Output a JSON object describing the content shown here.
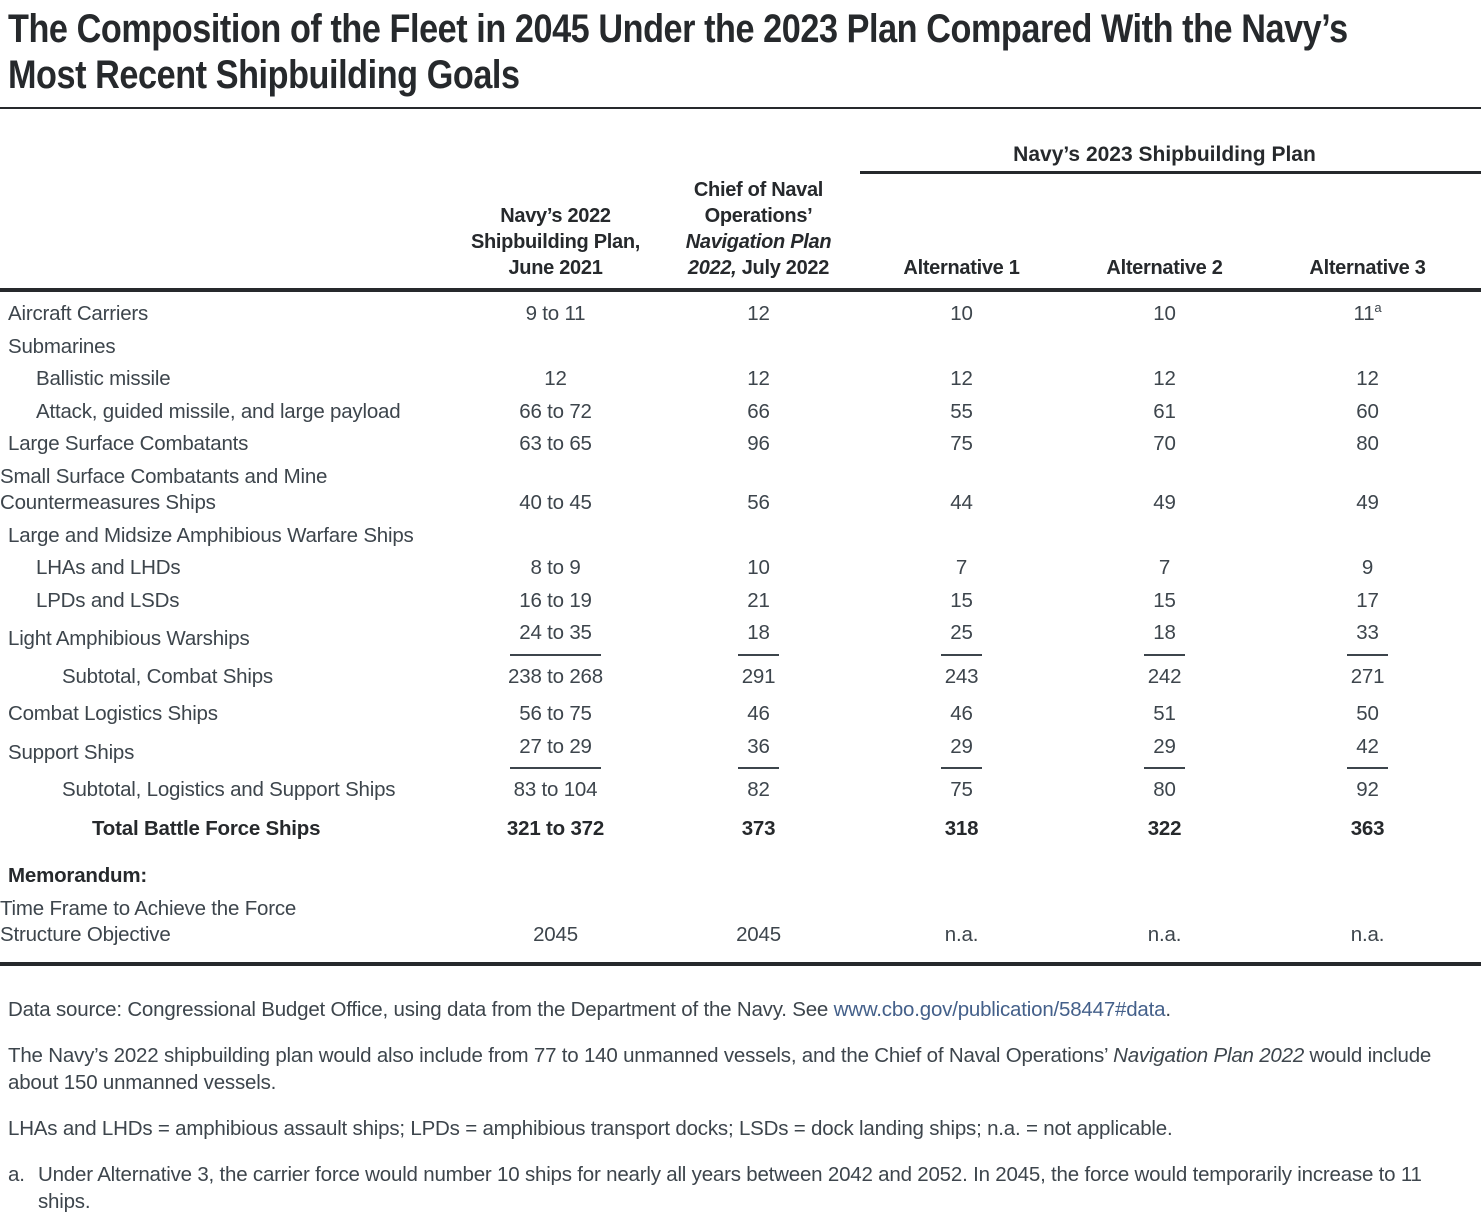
{
  "title": {
    "line1": "The Composition of the Fleet in 2045 Under the 2023 Plan Compared With the Navy’s",
    "line2": "Most Recent Shipbuilding Goals"
  },
  "colors": {
    "heading": "#26292c",
    "text": "#3d454c",
    "rule": "#26292c",
    "rule_thin": "#3d454c",
    "link": "#44608a"
  },
  "table": {
    "span_header": "Navy’s 2023 Shipbuilding Plan",
    "columns": [
      {
        "name": "navy-2022-plan",
        "lines": [
          [
            {
              "t": "Navy’s 2022"
            }
          ],
          [
            {
              "t": "Shipbuilding Plan,"
            }
          ],
          [
            {
              "t": "June 2021"
            }
          ]
        ]
      },
      {
        "name": "cno-navigation-plan",
        "lines": [
          [
            {
              "t": "Chief of Naval"
            }
          ],
          [
            {
              "t": "Operations’"
            }
          ],
          [
            {
              "t": "Navigation Plan",
              "i": true
            }
          ],
          [
            {
              "t": "2022,",
              "i": true
            },
            {
              "t": " July 2022"
            }
          ]
        ]
      },
      {
        "name": "alternative-1",
        "lines": [
          [
            {
              "t": "Alternative 1"
            }
          ]
        ]
      },
      {
        "name": "alternative-2",
        "lines": [
          [
            {
              "t": "Alternative 2"
            }
          ]
        ]
      },
      {
        "name": "alternative-3",
        "lines": [
          [
            {
              "t": "Alternative 3"
            }
          ]
        ]
      }
    ],
    "rows": [
      {
        "label": "Aircraft Carriers",
        "indent": 0,
        "values": [
          "9 to 11",
          "12",
          "10",
          "10",
          "11"
        ],
        "sup_last": "a"
      },
      {
        "label": "Submarines",
        "indent": 0,
        "values": [
          "",
          "",
          "",
          "",
          ""
        ]
      },
      {
        "label": "Ballistic missile",
        "indent": 1,
        "values": [
          "12",
          "12",
          "12",
          "12",
          "12"
        ]
      },
      {
        "label": "Attack, guided missile, and large payload",
        "indent": 1,
        "values": [
          "66 to 72",
          "66",
          "55",
          "61",
          "60"
        ]
      },
      {
        "label": "Large Surface Combatants",
        "indent": 0,
        "values": [
          "63 to 65",
          "96",
          "75",
          "70",
          "80"
        ]
      },
      {
        "label": "Small Surface Combatants and Mine\nCountermeasures Ships",
        "indent": 0,
        "twoline": true,
        "values": [
          "40 to 45",
          "56",
          "44",
          "49",
          "49"
        ]
      },
      {
        "label": "Large and Midsize Amphibious Warfare Ships",
        "indent": 0,
        "values": [
          "",
          "",
          "",
          "",
          ""
        ]
      },
      {
        "label": "LHAs and LHDs",
        "indent": 1,
        "values": [
          "8 to 9",
          "10",
          "7",
          "7",
          "9"
        ]
      },
      {
        "label": "LPDs and LSDs",
        "indent": 1,
        "values": [
          "16 to 19",
          "21",
          "15",
          "15",
          "17"
        ]
      },
      {
        "label": "Light Amphibious Warships",
        "indent": 0,
        "rule_below": true,
        "values": [
          "24 to 35",
          "18",
          "25",
          "18",
          "33"
        ]
      },
      {
        "label": "Subtotal, Combat Ships",
        "indent": 2,
        "gap": 5,
        "values": [
          "238 to 268",
          "291",
          "243",
          "242",
          "271"
        ]
      },
      {
        "label": "Combat Logistics Ships",
        "indent": 0,
        "gap": 5,
        "values": [
          "56 to 75",
          "46",
          "46",
          "51",
          "50"
        ]
      },
      {
        "label": "Support Ships",
        "indent": 0,
        "rule_below": true,
        "values": [
          "27 to 29",
          "36",
          "29",
          "29",
          "42"
        ]
      },
      {
        "label": "Subtotal, Logistics and Support Ships",
        "indent": 2,
        "gap": 5,
        "values": [
          "83 to 104",
          "82",
          "75",
          "80",
          "92"
        ]
      },
      {
        "label": "Total Battle Force Ships",
        "indent": 3,
        "bold": true,
        "gap": 6,
        "values": [
          "321 to 372",
          "373",
          "318",
          "322",
          "363"
        ]
      },
      {
        "label": "Memorandum:",
        "indent": 0,
        "bold": true,
        "gap": 15,
        "values": [
          "",
          "",
          "",
          "",
          ""
        ]
      },
      {
        "label": "Time Frame to Achieve the Force\nStructure Objective",
        "indent": 0,
        "twoline": true,
        "values": [
          "2045",
          "2045",
          "n.a.",
          "n.a.",
          "n.a."
        ]
      }
    ]
  },
  "notes": [
    {
      "name": "data-source-note",
      "segments": [
        {
          "t": "Data source: Congressional Budget Office, using data from the Department of the Navy. See "
        },
        {
          "t": "www.cbo.gov/publication/58447#data",
          "link": true
        },
        {
          "t": "."
        }
      ]
    },
    {
      "name": "unmanned-vessels-note",
      "segments": [
        {
          "t": "The Navy’s 2022 shipbuilding plan would also include from 77 to 140 unmanned vessels, and the Chief of Naval Operations’ "
        },
        {
          "t": "Navigation Plan 2022",
          "i": true
        },
        {
          "t": " would include about 150 unmanned vessels."
        }
      ]
    },
    {
      "name": "abbreviations-note",
      "segments": [
        {
          "t": "LHAs and LHDs = amphibious assault ships; LPDs = amphibious transport docks; LSDs = dock landing ships; n.a. = not applicable."
        }
      ]
    },
    {
      "name": "footnote-a",
      "marker": "a.",
      "segments": [
        {
          "t": "Under Alternative 3, the carrier force would number 10 ships for nearly all years between 2042 and 2052. In 2045, the force would temporarily increase to 11 ships."
        }
      ]
    }
  ]
}
